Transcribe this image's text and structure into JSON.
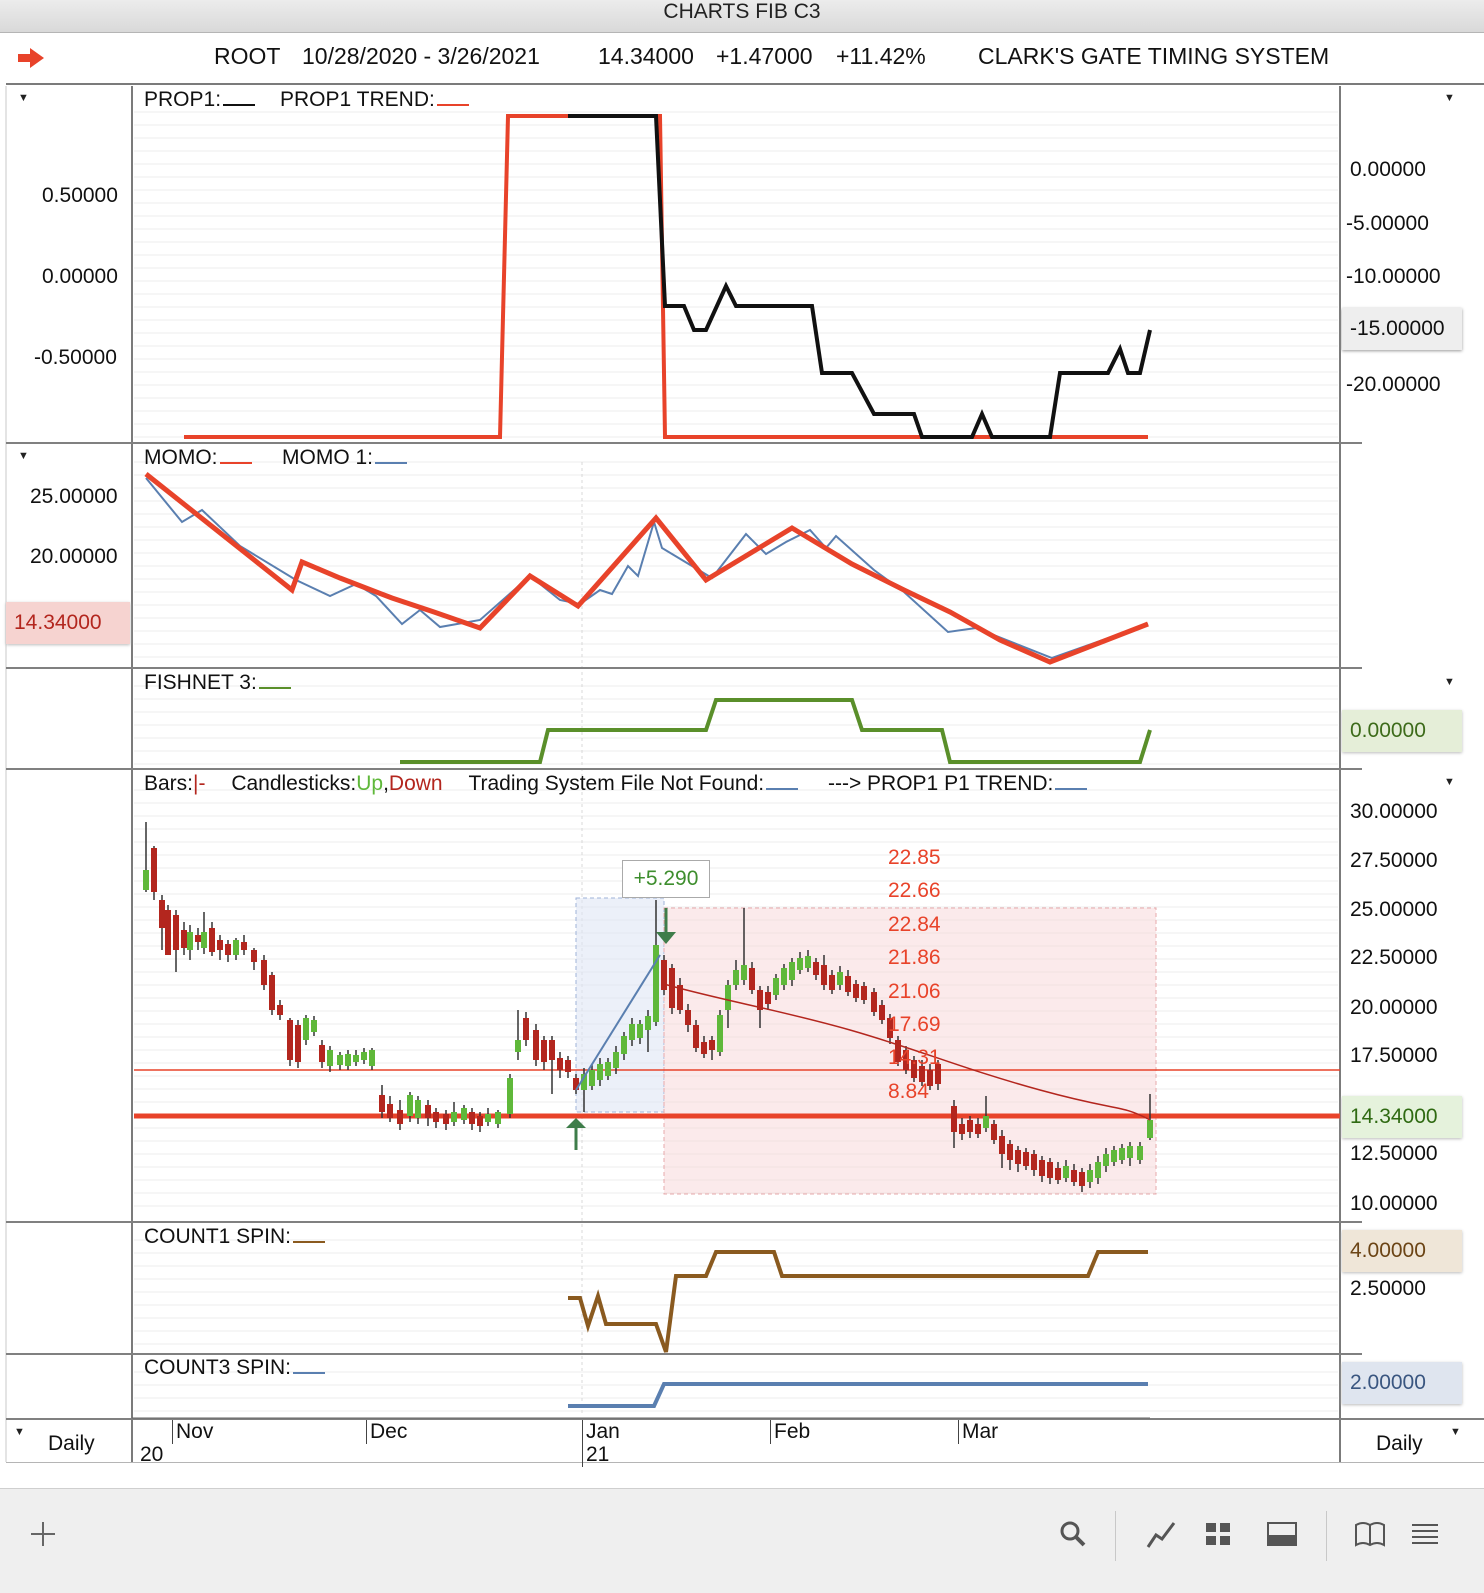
{
  "window": {
    "title": "CHARTS FIB C3"
  },
  "header": {
    "symbol": "ROOT",
    "date_range": "10/28/2020 - 3/26/2021",
    "last": "14.34000",
    "change": "+1.47000",
    "change_pct": "+11.42%",
    "system": "CLARK'S GATE TIMING SYSTEM"
  },
  "panels": {
    "prop": {
      "legend1": "PROP1:",
      "legend2": "PROP1 TREND:",
      "left_ticks": [
        "0.50000",
        "0.00000",
        "-0.50000"
      ],
      "right_ticks": [
        "0.00000",
        "-5.00000",
        "-10.00000",
        "-15.00000",
        "-20.00000"
      ]
    },
    "momo": {
      "legend1": "MOMO:",
      "legend2": "MOMO 1:",
      "left_ticks": [
        "25.00000",
        "20.00000"
      ],
      "current_badge": "14.34000"
    },
    "fishnet": {
      "legend1": "FISHNET 3:",
      "right_badge": "0.00000"
    },
    "price": {
      "legend_bars": "Bars:",
      "legend_bars_sym": "|-",
      "legend_candles": "Candlesticks:",
      "legend_up": "Up",
      "legend_comma": ",",
      "legend_down": "Down",
      "legend_system": "Trading System File Not Found:",
      "legend_trend": "---> PROP1 P1 TREND:",
      "right_ticks": [
        "30.00000",
        "27.50000",
        "25.00000",
        "22.50000",
        "20.00000",
        "17.50000",
        "12.50000",
        "10.00000"
      ],
      "current_badge": "14.34000",
      "gain_label": "+5.290",
      "fib_levels": [
        "22.85",
        "22.66",
        "22.84",
        "21.86",
        "21.06",
        "17.69",
        "14.31",
        "8.84"
      ]
    },
    "count1": {
      "legend1": "COUNT1 SPIN:",
      "right_badge": "4.00000",
      "right_tick": "2.50000"
    },
    "count3": {
      "legend1": "COUNT3 SPIN:",
      "right_badge": "2.00000"
    }
  },
  "xaxis": {
    "months": [
      "Nov",
      "Dec",
      "Jan",
      "Feb",
      "Mar"
    ],
    "years": [
      "20",
      "21"
    ],
    "period_left": "Daily",
    "period_right": "Daily"
  },
  "colors": {
    "red": "#e8432a",
    "black": "#111111",
    "blue": "#5a7fb0",
    "green": "#5a8f2a",
    "brown": "#8a5a1f",
    "candle_up": "#5fb83a",
    "candle_down": "#b3261e"
  },
  "toolbar": {
    "icons": [
      "plus-icon",
      "search-icon",
      "draw-line-icon",
      "grid-icon",
      "panel-icon",
      "book-icon",
      "menu-icon"
    ]
  }
}
